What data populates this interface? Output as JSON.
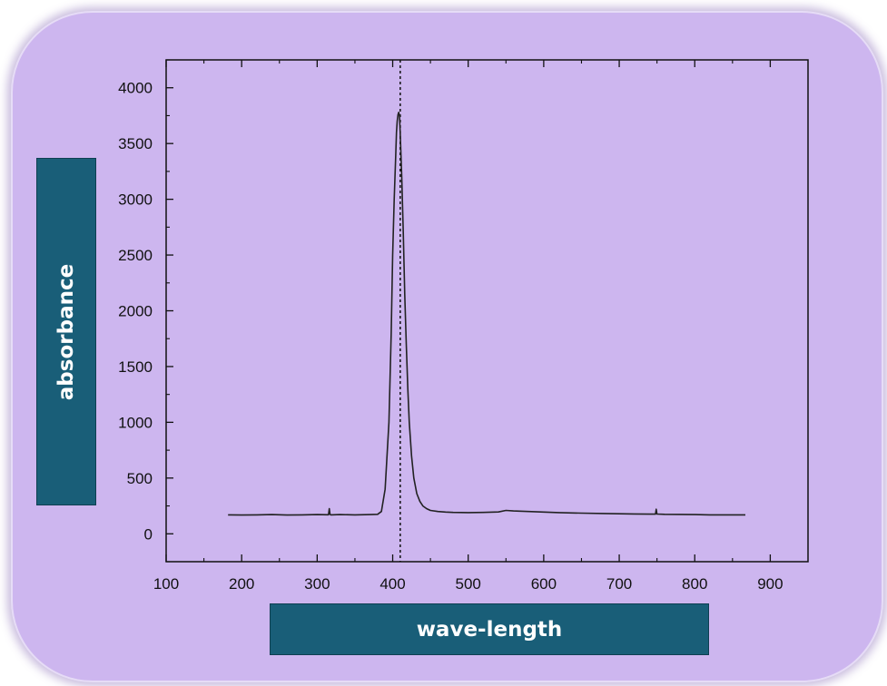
{
  "chart_data": {
    "type": "line",
    "xlabel": "wave-length",
    "ylabel": "absorbance",
    "xlim": [
      100,
      950
    ],
    "ylim": [
      -250,
      4250
    ],
    "xticks": [
      100,
      200,
      300,
      400,
      500,
      600,
      700,
      800,
      900
    ],
    "yticks": [
      0,
      500,
      1000,
      1500,
      2000,
      2500,
      3000,
      3500,
      4000
    ],
    "peak_marker_x": 410,
    "grid": false,
    "series": [
      {
        "x": [
          182,
          200,
          220,
          240,
          260,
          280,
          300,
          315,
          316,
          317,
          318,
          330,
          350,
          370,
          380,
          385,
          390,
          395,
          398,
          400,
          402,
          404,
          405,
          406,
          407,
          408,
          409,
          410,
          412,
          414,
          416,
          418,
          420,
          422,
          425,
          428,
          432,
          436,
          440,
          445,
          450,
          460,
          470,
          480,
          500,
          520,
          540,
          550,
          560,
          580,
          600,
          620,
          650,
          680,
          700,
          720,
          740,
          748,
          749,
          750,
          760,
          780,
          800,
          820,
          840,
          867
        ],
        "y": [
          170,
          168,
          170,
          172,
          168,
          170,
          172,
          171,
          225,
          175,
          170,
          172,
          170,
          172,
          175,
          200,
          400,
          1000,
          1800,
          2500,
          3000,
          3400,
          3600,
          3700,
          3760,
          3780,
          3750,
          3600,
          3200,
          2700,
          2150,
          1700,
          1300,
          1000,
          700,
          500,
          360,
          290,
          250,
          225,
          210,
          200,
          195,
          192,
          190,
          192,
          196,
          210,
          205,
          200,
          195,
          190,
          185,
          182,
          180,
          178,
          176,
          176,
          220,
          177,
          175,
          174,
          172,
          170,
          170,
          170
        ]
      }
    ]
  }
}
